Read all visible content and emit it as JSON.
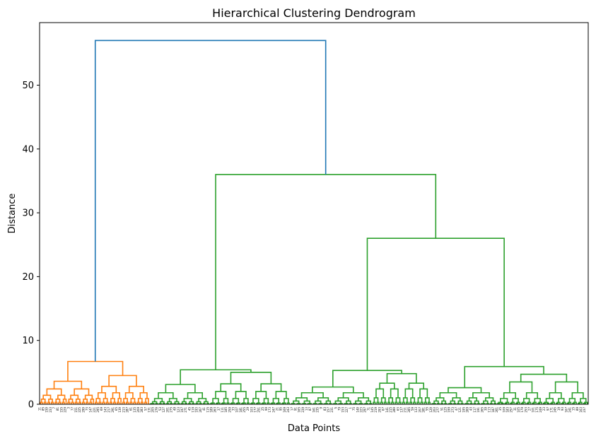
{
  "chart_data": {
    "type": "dendrogram",
    "title": "Hierarchical Clustering Dendrogram",
    "xlabel": "Data Points",
    "ylabel": "Distance",
    "ylim": [
      0,
      59.8
    ],
    "yticks": [
      0,
      10,
      20,
      30,
      40,
      50
    ],
    "grid": false,
    "legend": "none",
    "colors": {
      "root": "#1f77b4",
      "cluster_1": "#ff7f0e",
      "cluster_2": "#2ca02c",
      "axes": "#000000"
    },
    "leaf_count": 300,
    "link_color_threshold": 7,
    "merges": [
      {
        "id": "m-a",
        "left": "leaf-range:0-59",
        "right": "leaf-range:60-299",
        "height": 57.0,
        "color": "root"
      },
      {
        "id": "m-b",
        "left": "leaf-range:60-136",
        "right": "leaf-range:137-299",
        "height": 36.0,
        "color": "cluster_2"
      },
      {
        "id": "m-c",
        "left": "leaf-range:137-213",
        "right": "leaf-range:214-299",
        "height": 26.0,
        "color": "cluster_2"
      },
      {
        "id": "m-d",
        "left": "leaf-range:0-29",
        "right": "leaf-range:30-59",
        "height": 6.7,
        "color": "cluster_1"
      },
      {
        "id": "m-e",
        "left": "leaf-range:60-92",
        "right": "leaf-range:93-136",
        "height": 5.4,
        "color": "cluster_2"
      },
      {
        "id": "m-f",
        "left": "leaf-range:137-181",
        "right": "leaf-range:182-213",
        "height": 5.3,
        "color": "cluster_2"
      },
      {
        "id": "m-g",
        "left": "leaf-range:214-249",
        "right": "leaf-range:250-299",
        "height": 5.9,
        "color": "cluster_2"
      }
    ],
    "subtree_profiles": [
      {
        "range": [
          0,
          29
        ],
        "levels": [
          3.6,
          2.4,
          1.4,
          0.8,
          0.3
        ],
        "color": "cluster_1"
      },
      {
        "range": [
          30,
          59
        ],
        "levels": [
          4.5,
          2.8,
          1.8,
          0.9,
          0.3
        ],
        "color": "cluster_1"
      },
      {
        "range": [
          60,
          92
        ],
        "levels": [
          3.1,
          1.8,
          0.9,
          0.4,
          0.1
        ],
        "color": "cluster_2"
      },
      {
        "range": [
          93,
          136
        ],
        "levels": [
          5.0,
          3.2,
          2.0,
          0.9,
          0.2
        ],
        "color": "cluster_2"
      },
      {
        "range": [
          137,
          181
        ],
        "levels": [
          2.7,
          1.8,
          1.0,
          0.5,
          0.1
        ],
        "color": "cluster_2"
      },
      {
        "range": [
          182,
          213
        ],
        "levels": [
          4.8,
          3.3,
          2.4,
          1.0,
          0.3
        ],
        "color": "cluster_2"
      },
      {
        "range": [
          214,
          249
        ],
        "levels": [
          2.6,
          1.8,
          1.0,
          0.5,
          0.1
        ],
        "color": "cluster_2"
      },
      {
        "range": [
          250,
          299
        ],
        "levels": [
          4.7,
          3.5,
          1.8,
          0.9,
          0.3
        ],
        "color": "cluster_2"
      }
    ]
  }
}
